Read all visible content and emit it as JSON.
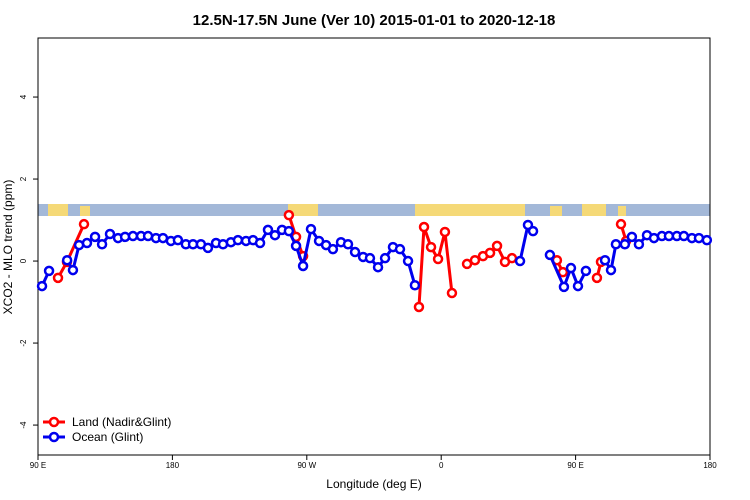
{
  "chart_data": {
    "type": "line",
    "title": "12.5N-17.5N June (Ver 10)   2015-01-01 to 2020-12-18",
    "x_label": "Longitude (deg E)",
    "y_label": "XCO2 - MLO trend (ppm)",
    "xlim": [
      90,
      540
    ],
    "xticks": [
      {
        "value": 90,
        "label": "90 E"
      },
      180,
      {
        "value": 270,
        "label": "90 W"
      },
      {
        "value": 360,
        "label": "0"
      },
      {
        "value": 450,
        "label": "90 E"
      },
      {
        "value": 540,
        "label": "180"
      }
    ],
    "ylim": [
      -4.73,
      5.44
    ],
    "yticks": [
      -4,
      -2,
      0,
      2,
      4
    ],
    "legend": "bottom-left",
    "series": [
      {
        "name": "Land (Nadir&Glint)",
        "color": "#ff0000",
        "x": [
          103.4,
          109.4,
          120.8,
          null,
          258,
          262.8,
          267.5,
          null,
          345.1,
          348.5,
          353.2,
          357.9,
          362.5,
          367.2,
          null,
          377.3,
          382.6,
          388,
          392.7,
          397.4,
          402.7,
          407.4,
          null,
          437.5,
          441.5,
          null,
          464.3,
          467,
          null,
          480.4,
          483.8
        ],
        "values": [
          -0.41,
          -0.02,
          0.9,
          null,
          1.12,
          0.59,
          0.12,
          null,
          -1.12,
          0.83,
          0.34,
          0.05,
          0.71,
          -0.78,
          null,
          -0.07,
          0.02,
          0.12,
          0.2,
          0.37,
          -0.02,
          0.07,
          null,
          0.02,
          -0.27,
          null,
          -0.41,
          -0.02,
          null,
          0.9,
          0.49
        ]
      },
      {
        "name": "Ocean (Glint)",
        "color": "#0000ee",
        "x": [
          92.7,
          97.4,
          null,
          109.5,
          113.4,
          117.5,
          122.8,
          128.2,
          132.9,
          138.2,
          143.6,
          148.3,
          153.6,
          159,
          163.7,
          169,
          173.7,
          179,
          183.7,
          189,
          193.8,
          199.1,
          203.8,
          209.2,
          213.9,
          219.2,
          223.9,
          229.3,
          234,
          238.7,
          244,
          248.7,
          253.4,
          258,
          262.8,
          267.5,
          272.8,
          278.2,
          282.9,
          287.5,
          292.9,
          297.6,
          302.3,
          307.7,
          312.3,
          317.7,
          322.4,
          327.7,
          332.4,
          337.8,
          342.4,
          null,
          412.8,
          418.1,
          421.5,
          null,
          432.8,
          442.2,
          446.9,
          451.6,
          456.9,
          null,
          469.7,
          473.7,
          477,
          483,
          487.7,
          492.4,
          497.8,
          502.5,
          507.8,
          512.5,
          517.8,
          522.5,
          527.9,
          532.6,
          537.9
        ],
        "values": [
          -0.61,
          -0.24,
          null,
          0.02,
          -0.22,
          0.39,
          0.44,
          0.59,
          0.41,
          0.66,
          0.56,
          0.59,
          0.61,
          0.61,
          0.61,
          0.56,
          0.56,
          0.49,
          0.51,
          0.41,
          0.41,
          0.41,
          0.32,
          0.44,
          0.41,
          0.46,
          0.51,
          0.49,
          0.51,
          0.44,
          0.76,
          0.63,
          0.76,
          0.73,
          0.37,
          -0.12,
          0.78,
          0.49,
          0.39,
          0.29,
          0.46,
          0.41,
          0.22,
          0.1,
          0.07,
          -0.15,
          0.07,
          0.34,
          0.29,
          0,
          -0.59,
          null,
          0,
          0.88,
          0.73,
          null,
          0.15,
          -0.63,
          -0.17,
          -0.61,
          -0.24,
          null,
          0.02,
          -0.22,
          0.41,
          0.41,
          0.59,
          0.41,
          0.63,
          0.56,
          0.61,
          0.61,
          0.61,
          0.61,
          0.56,
          0.56,
          0.51
        ]
      }
    ]
  }
}
